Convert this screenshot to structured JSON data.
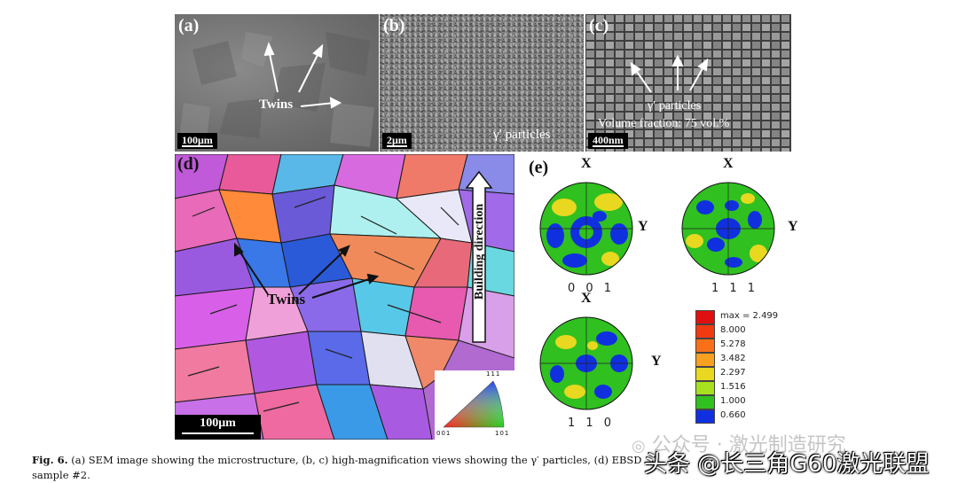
{
  "panels": {
    "a": {
      "label": "(a)",
      "annotation": "Twins",
      "scale_bar": "100μm"
    },
    "b": {
      "label": "(b)",
      "annotation": "γ′ particles",
      "scale_bar": "2μm"
    },
    "c": {
      "label": "(c)",
      "annotation_line1": "γ′ particles",
      "annotation_line2": "Volume fraction: 75 vol.%",
      "scale_bar": "400nm"
    },
    "d": {
      "label": "(d)",
      "annotation": "Twins",
      "arrow_label": "Building direction",
      "scale_bar": "100μm",
      "ipf_key": {
        "top": "111",
        "bottom_left": "001",
        "bottom_right": "101"
      }
    },
    "e": {
      "label": "(e)",
      "pole_figures": [
        {
          "name": "0 0 1",
          "axis_top": "X",
          "axis_right": "Y"
        },
        {
          "name": "1 1 1",
          "axis_top": "X",
          "axis_right": "Y"
        },
        {
          "name": "1 1 0",
          "axis_top": "X",
          "axis_right": "Y"
        }
      ],
      "legend": [
        {
          "label": "max = 2.499",
          "color": "#e01010"
        },
        {
          "label": "8.000",
          "color": "#f03a10"
        },
        {
          "label": "5.278",
          "color": "#f87018"
        },
        {
          "label": "3.482",
          "color": "#f8a020"
        },
        {
          "label": "2.297",
          "color": "#e8d820"
        },
        {
          "label": "1.516",
          "color": "#a8e020"
        },
        {
          "label": "1.000",
          "color": "#30c020"
        },
        {
          "label": "0.660",
          "color": "#1030e0"
        }
      ]
    }
  },
  "caption": {
    "fig_label": "Fig. 6.",
    "text_line1": "(a) SEM image showing the microstructure, (b, c) high-magnification views showing the γ′ particles, (d) EBSD",
    "text_line2": "sample #2."
  },
  "watermarks": {
    "top": "公众号 · 激光制造研究",
    "bottom": "头条 @长三角G60激光联盟"
  }
}
